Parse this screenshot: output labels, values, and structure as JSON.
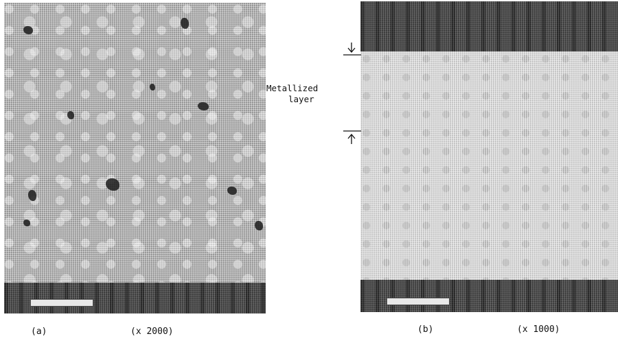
{
  "figure": {
    "panel_a": {
      "label": "(a)",
      "magnification": "(x 2000)"
    },
    "panel_b": {
      "label": "(b)",
      "magnification": "(x 1000)"
    },
    "annotation": {
      "line1": "Metallized",
      "line2": "layer"
    }
  }
}
